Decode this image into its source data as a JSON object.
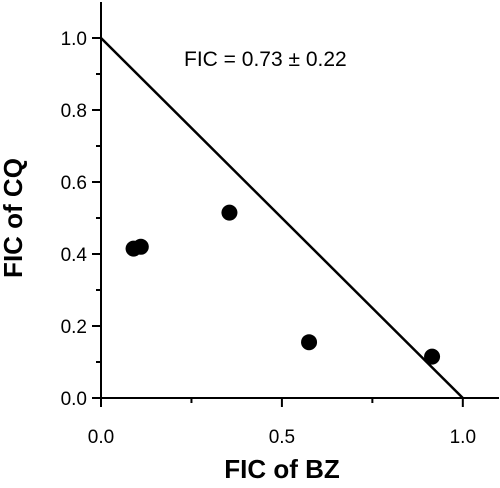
{
  "chart_data": {
    "type": "scatter",
    "title": "",
    "xlabel": "FIC of BZ",
    "ylabel": "FIC of CQ",
    "xlim": [
      0,
      1.1
    ],
    "ylim": [
      0,
      1.1
    ],
    "x_ticks": [
      0.0,
      0.5,
      1.0
    ],
    "x_tick_labels": [
      "0.0",
      "0.5",
      "1.0"
    ],
    "y_ticks": [
      0.0,
      0.2,
      0.4,
      0.6,
      0.8,
      1.0
    ],
    "y_tick_labels": [
      "0.0",
      "0.2",
      "0.4",
      "0.6",
      "0.8",
      "1.0"
    ],
    "grid": false,
    "series": [
      {
        "x": [
          0.09,
          0.11,
          0.355,
          0.575,
          0.915
        ],
        "y": [
          0.415,
          0.42,
          0.515,
          0.155,
          0.115
        ]
      }
    ],
    "reference_line": {
      "x": [
        0,
        1.0
      ],
      "y": [
        1.0,
        0
      ]
    },
    "annotations": [
      {
        "text": "FIC = 0.73 ± 0.22"
      }
    ],
    "colors": {
      "marker": "#000000",
      "line": "#000000",
      "axis": "#000000"
    }
  }
}
